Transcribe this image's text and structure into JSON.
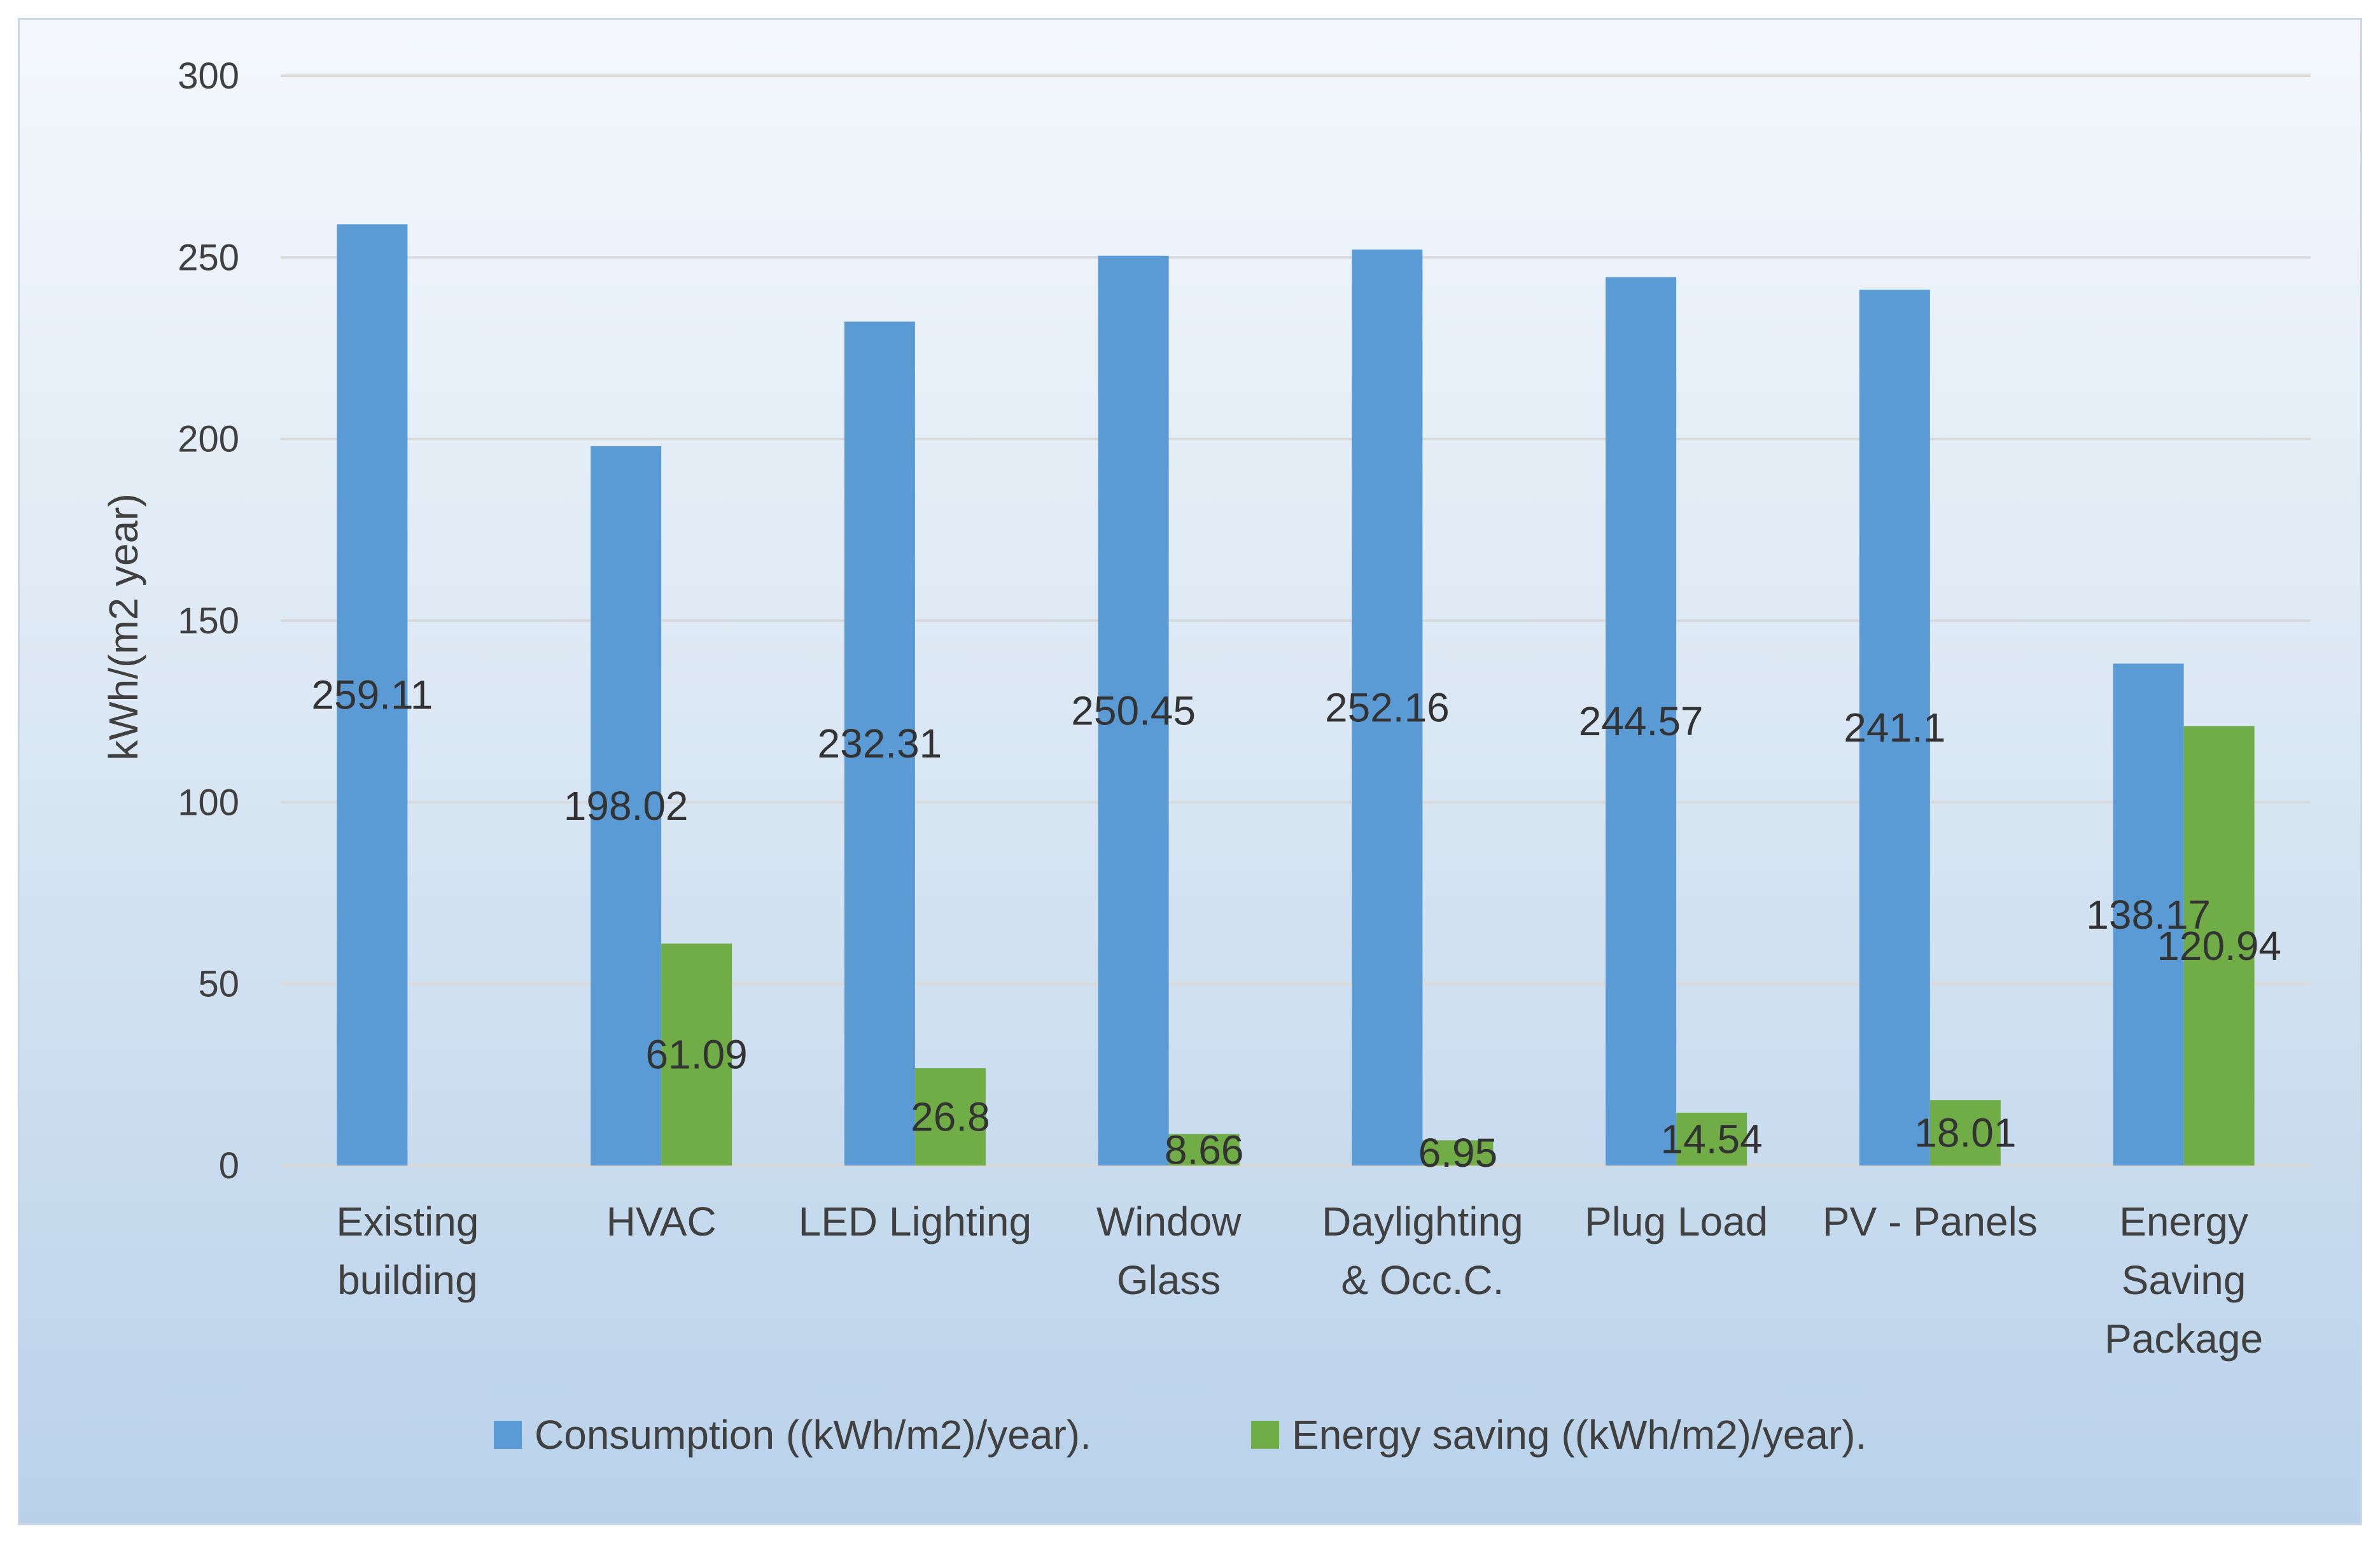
{
  "chart_data": {
    "type": "bar",
    "categories": [
      [
        "Existing",
        "building"
      ],
      [
        "HVAC"
      ],
      [
        "LED Lighting"
      ],
      [
        "Window",
        "Glass"
      ],
      [
        "Daylighting",
        "& Occ.C."
      ],
      [
        "Plug Load"
      ],
      [
        "PV - Panels"
      ],
      [
        "Energy",
        "Saving",
        "Package"
      ]
    ],
    "series": [
      {
        "name": "Consumption ((kWh/m2)/year).",
        "color": "#5b9bd5",
        "values": [
          259.11,
          198.02,
          232.31,
          250.45,
          252.16,
          244.57,
          241.1,
          138.17
        ],
        "labels": [
          "259.11",
          "198.02",
          "232.31",
          "250.45",
          "252.16",
          "244.57",
          "241.1",
          "138.17"
        ]
      },
      {
        "name": "Energy saving ((kWh/m2)/year).",
        "color": "#70ad47",
        "values": [
          null,
          61.09,
          26.8,
          8.66,
          6.95,
          14.54,
          18.01,
          120.94
        ],
        "labels": [
          "",
          "61.09",
          "26.8",
          "8.66",
          "6.95",
          "14.54",
          "18.01",
          "120.94"
        ]
      }
    ],
    "title": "",
    "xlabel": "",
    "ylabel": "kWh/(m2 year)",
    "ylim": [
      0,
      300
    ],
    "yticks": [
      0,
      50,
      100,
      150,
      200,
      250,
      300
    ],
    "grid": true,
    "gridline_color": "#d9d9d9",
    "legend_position": "bottom"
  }
}
